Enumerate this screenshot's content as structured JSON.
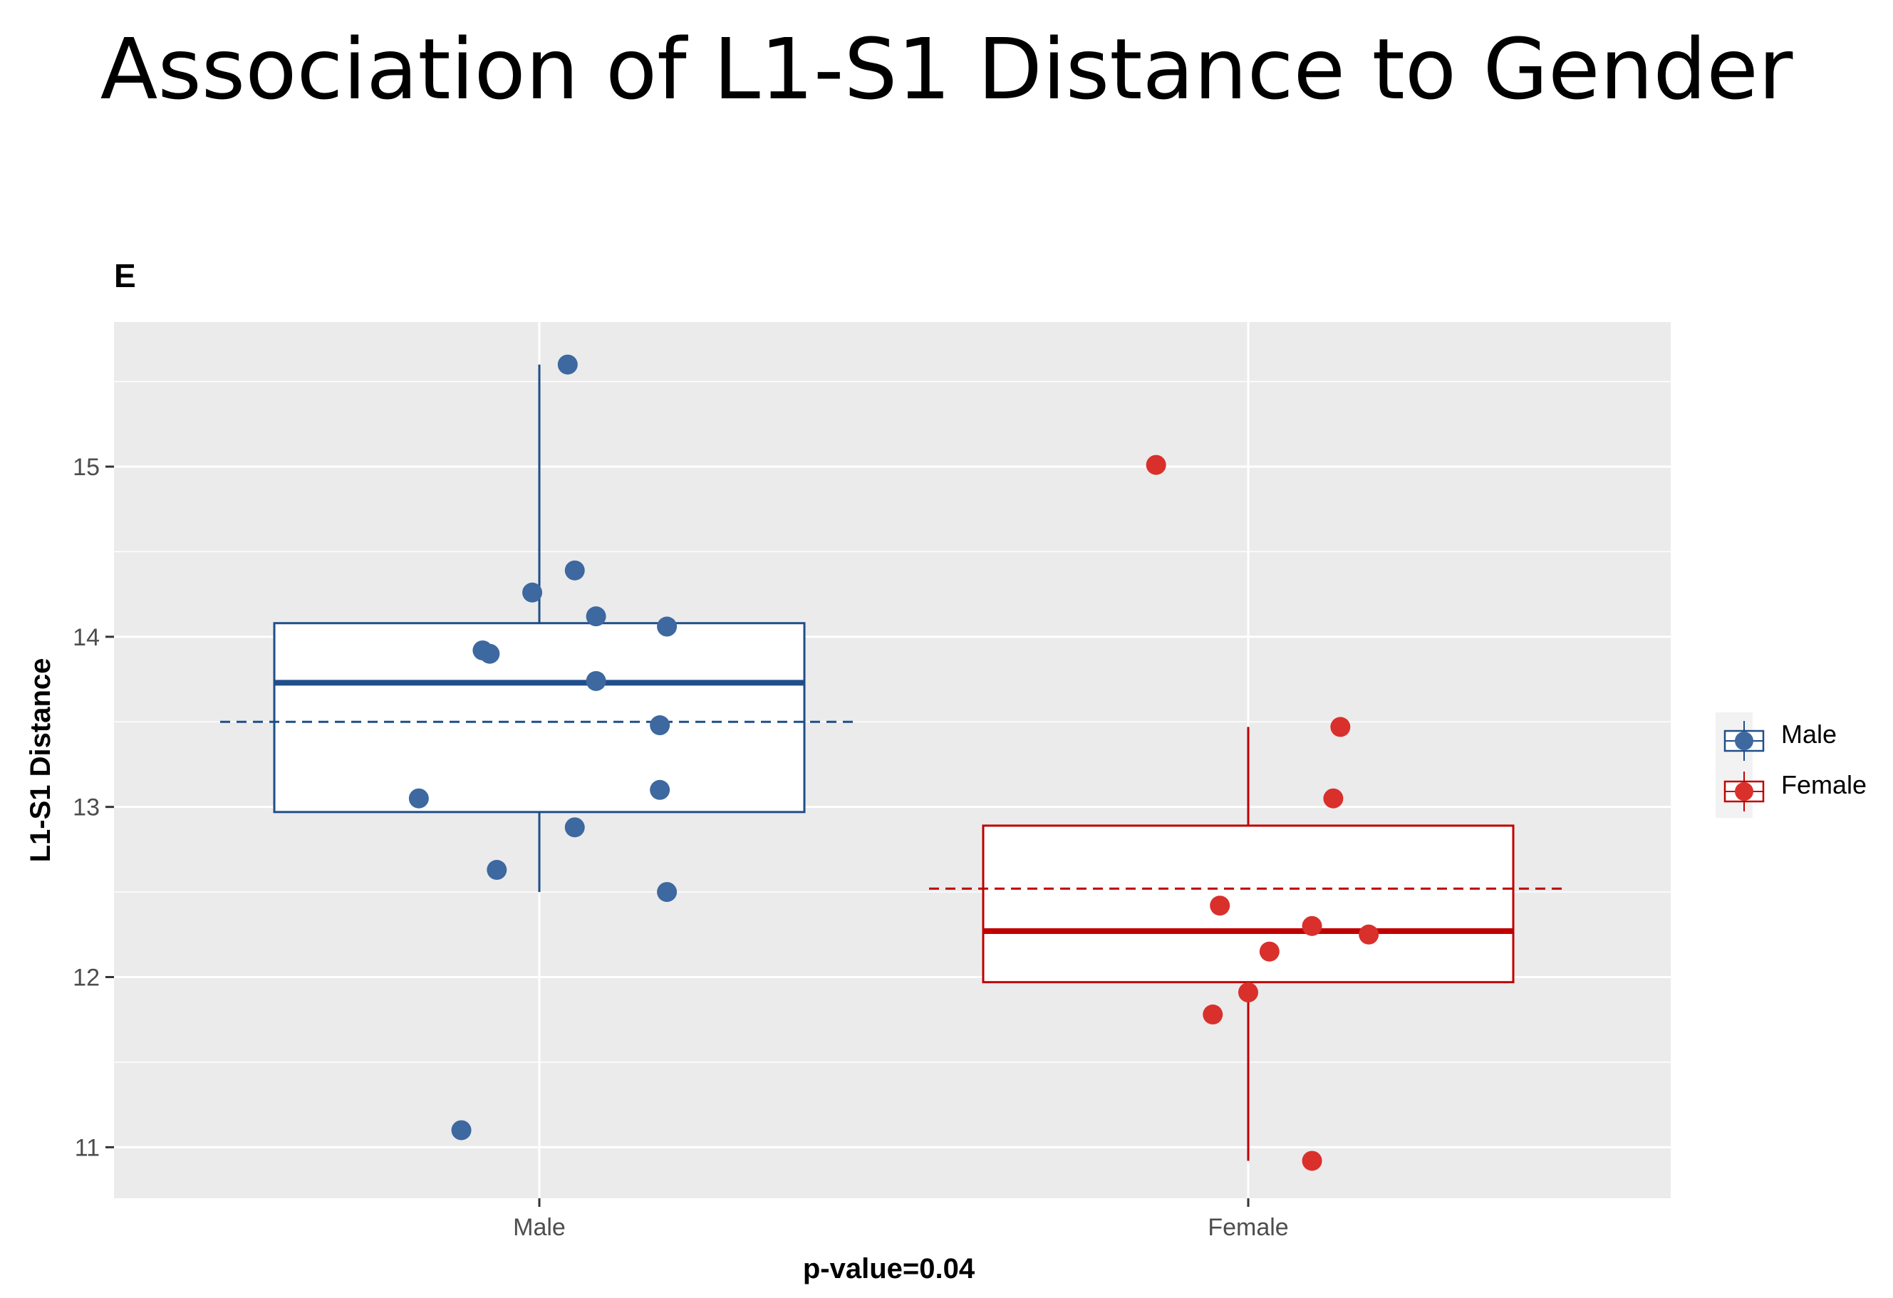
{
  "title": "Association of L1-S1 Distance to Gender",
  "panel_label": "E",
  "chart_data": {
    "type": "boxplot",
    "title": "Association of L1-S1 Distance to Gender",
    "xlabel": "p-value=0.04",
    "ylabel": "L1-S1 Distance",
    "ylim": [
      10.7,
      15.85
    ],
    "yticks": [
      11,
      12,
      13,
      14,
      15
    ],
    "categories": [
      "Male",
      "Female"
    ],
    "legend_position": "right",
    "grid": true,
    "series": [
      {
        "name": "Male",
        "color": "#1f4e8a",
        "point_color": "#3d68a0",
        "box": {
          "q1": 12.97,
          "median": 13.73,
          "q3": 14.08,
          "whisker_low": 12.5,
          "whisker_high": 15.6,
          "mean": 13.5
        },
        "points": [
          {
            "jitter": 0.04,
            "y": 15.6
          },
          {
            "jitter": 0.05,
            "y": 14.39
          },
          {
            "jitter": -0.01,
            "y": 14.26
          },
          {
            "jitter": 0.08,
            "y": 14.12
          },
          {
            "jitter": 0.18,
            "y": 14.06
          },
          {
            "jitter": -0.08,
            "y": 13.92
          },
          {
            "jitter": -0.07,
            "y": 13.9
          },
          {
            "jitter": 0.08,
            "y": 13.74
          },
          {
            "jitter": 0.17,
            "y": 13.48
          },
          {
            "jitter": -0.17,
            "y": 13.05
          },
          {
            "jitter": 0.17,
            "y": 13.1
          },
          {
            "jitter": 0.05,
            "y": 12.88
          },
          {
            "jitter": -0.06,
            "y": 12.63
          },
          {
            "jitter": 0.18,
            "y": 12.5
          },
          {
            "jitter": -0.11,
            "y": 11.1
          }
        ]
      },
      {
        "name": "Female",
        "color": "#c00000",
        "point_color": "#d9302c",
        "box": {
          "q1": 11.97,
          "median": 12.27,
          "q3": 12.89,
          "whisker_low": 10.92,
          "whisker_high": 13.47,
          "mean": 12.52
        },
        "points": [
          {
            "jitter": -0.13,
            "y": 15.01
          },
          {
            "jitter": 0.13,
            "y": 13.47
          },
          {
            "jitter": 0.12,
            "y": 13.05
          },
          {
            "jitter": -0.04,
            "y": 12.42
          },
          {
            "jitter": 0.09,
            "y": 12.3
          },
          {
            "jitter": 0.17,
            "y": 12.25
          },
          {
            "jitter": 0.03,
            "y": 12.15
          },
          {
            "jitter": 0.0,
            "y": 11.91
          },
          {
            "jitter": -0.05,
            "y": 11.78
          },
          {
            "jitter": 0.09,
            "y": 10.92
          }
        ]
      }
    ]
  }
}
